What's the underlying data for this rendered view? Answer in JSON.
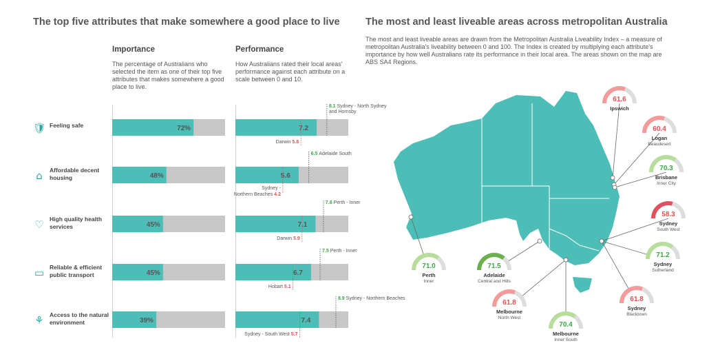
{
  "left_title": "The top five attributes that make somewhere a good place to live",
  "right_title": "The most and least liveable areas across metropolitan Australia",
  "importance": {
    "heading": "Importance",
    "desc": "The percentage of Australians who selected the item as one of their top five attributes that makes somewhere a good place to live."
  },
  "performance": {
    "heading": "Performance",
    "desc": "How Australians rated their local areas' performance against each attribute on a scale between 0 and 10."
  },
  "map_desc": "The most and least liveable areas are drawn from the Metropolitan Australia Liveability Index – a measure of metropolitan Australia's liveability between 0 and 100. The Index is created by multiplying each attribute's importance by how well Australians rate its performance in their local area. The areas shown on the map are ABS SA4 Regions.",
  "colors": {
    "teal": "#4dbdb7",
    "grey": "#c7c7c7",
    "green": "#3aa648",
    "red": "#e05050",
    "gauge_green": "#b7dd9a",
    "gauge_red": "#f39a9a",
    "gauge_dark_green": "#6ab04c",
    "gauge_dark_red": "#e0505f"
  },
  "chart_data": [
    {
      "type": "bar",
      "title": "Importance",
      "categories": [
        "Feeling safe",
        "Affordable decent housing",
        "High quality health services",
        "Reliable & efficient public transport",
        "Access to the natural environment"
      ],
      "values": [
        72,
        48,
        45,
        45,
        39
      ],
      "value_labels": [
        "72%",
        "48%",
        "45%",
        "45%",
        "39%"
      ],
      "ylim": [
        0,
        100
      ]
    },
    {
      "type": "bar",
      "title": "Performance",
      "categories": [
        "Feeling safe",
        "Affordable decent housing",
        "High quality health services",
        "Reliable & efficient public transport",
        "Access to the natural environment"
      ],
      "values": [
        7.2,
        5.6,
        7.1,
        6.7,
        7.4
      ],
      "value_labels": [
        "7.2",
        "5.6",
        "7.1",
        "6.7",
        "7.4"
      ],
      "ylim": [
        0,
        10
      ],
      "highs": [
        {
          "value": 8.1,
          "value_label": "8.1",
          "area": "Sydney - North Sydney and Hornsby"
        },
        {
          "value": 6.5,
          "value_label": "6.5",
          "area": "Adelaide South"
        },
        {
          "value": 7.8,
          "value_label": "7.8",
          "area": "Perth - Inner"
        },
        {
          "value": 7.5,
          "value_label": "7.5",
          "area": "Perth - Inner"
        },
        {
          "value": 8.9,
          "value_label": "8.9",
          "area": "Sydney - Northern Beaches"
        }
      ],
      "lows": [
        {
          "value": 5.8,
          "value_label": "5.8",
          "area": "Darwin"
        },
        {
          "value": 4.2,
          "value_label": "4.2",
          "area": "Sydney - Northern Beaches"
        },
        {
          "value": 5.9,
          "value_label": "5.9",
          "area": "Darwin"
        },
        {
          "value": 5.1,
          "value_label": "5.1",
          "area": "Hobart"
        },
        {
          "value": 5.7,
          "value_label": "5.7",
          "area": "Sydney - South West"
        }
      ]
    },
    {
      "type": "gauge",
      "ylim": [
        0,
        100
      ],
      "gauges": [
        {
          "value": 61.6,
          "value_label": "61.6",
          "name": "Ipswich",
          "sub": "",
          "level": "low"
        },
        {
          "value": 60.4,
          "value_label": "60.4",
          "name": "Logan",
          "sub": "Beaudesert",
          "level": "low"
        },
        {
          "value": 70.3,
          "value_label": "70.3",
          "name": "Brisbane",
          "sub": "Inner City",
          "level": "high"
        },
        {
          "value": 58.3,
          "value_label": "58.3",
          "name": "Sydney",
          "sub": "South West",
          "level": "lowest"
        },
        {
          "value": 71.2,
          "value_label": "71.2",
          "name": "Sydney",
          "sub": "Sutherland",
          "level": "high"
        },
        {
          "value": 61.8,
          "value_label": "61.8",
          "name": "Sydney",
          "sub": "Blacktown",
          "level": "low"
        },
        {
          "value": 70.4,
          "value_label": "70.4",
          "name": "Melbourne",
          "sub": "Inner South",
          "level": "high"
        },
        {
          "value": 61.8,
          "value_label": "61.8",
          "name": "Melbourne",
          "sub": "North West",
          "level": "low"
        },
        {
          "value": 71.5,
          "value_label": "71.5",
          "name": "Adelaide",
          "sub": "Central and Hills",
          "level": "highest"
        },
        {
          "value": 71.0,
          "value_label": "71.0",
          "name": "Perth",
          "sub": "Inner",
          "level": "high"
        }
      ]
    }
  ],
  "icons": [
    "shield-check-icon",
    "house-icon",
    "heart-pulse-icon",
    "bus-icon",
    "plant-icon"
  ]
}
